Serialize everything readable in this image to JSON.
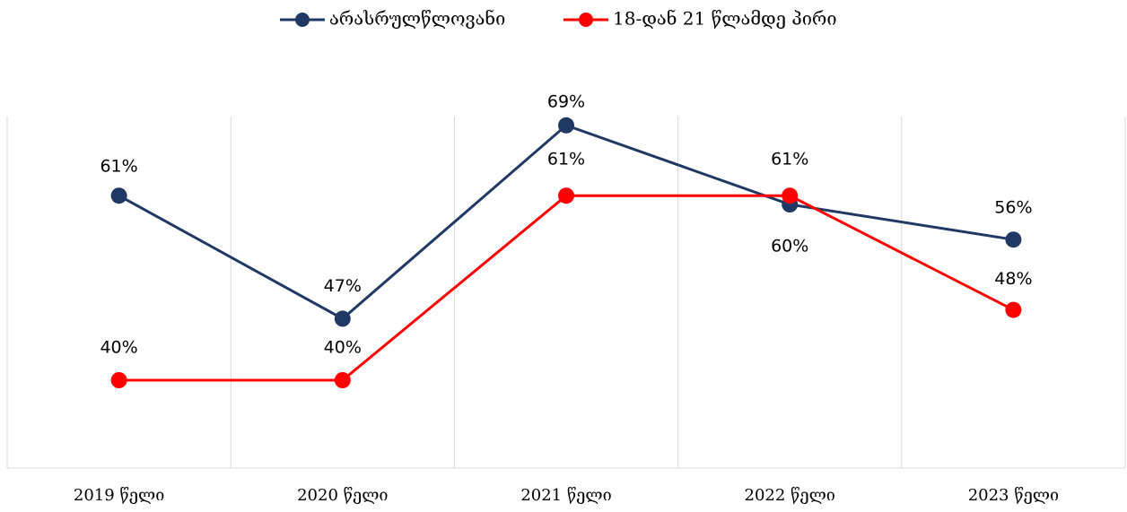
{
  "chart_data": {
    "type": "line",
    "categories": [
      "2019 წელი",
      "2020 წელი",
      "2021 წელი",
      "2022 წელი",
      "2023 წელი"
    ],
    "series": [
      {
        "name": "არასრულწლოვანი",
        "color": "#203864",
        "values": [
          61,
          47,
          69,
          60,
          56
        ],
        "value_labels": [
          "61%",
          "47%",
          "69%",
          "60%",
          "56%"
        ]
      },
      {
        "name": "18-დან 21 წლამდე პირი",
        "color": "#ff0000",
        "values": [
          40,
          40,
          61,
          61,
          48
        ],
        "value_labels": [
          "40%",
          "40%",
          "61%",
          "61%",
          "48%"
        ]
      }
    ],
    "ylim": [
      30,
      70
    ],
    "legend": "top"
  }
}
